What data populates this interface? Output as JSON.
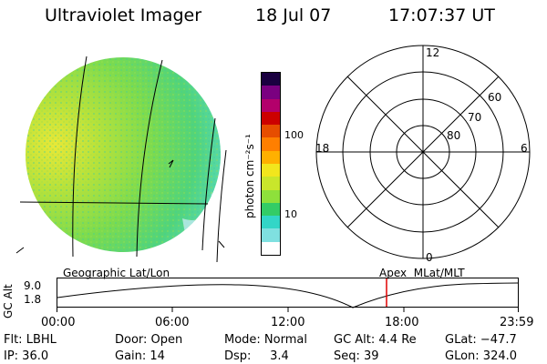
{
  "header": {
    "title": "Ultraviolet Imager",
    "date": "18 Jul 07",
    "time": "17:07:37 UT"
  },
  "colorbar": {
    "unit_label": "photon cm⁻²s⁻¹",
    "ticks": [
      "100",
      "10"
    ],
    "colors": [
      "#ffffff",
      "#7fe0e0",
      "#32d6c7",
      "#33cc66",
      "#8ee03b",
      "#c9e62b",
      "#f2e61d",
      "#ffb000",
      "#ff7f00",
      "#e64d00",
      "#cc0000",
      "#b3006b",
      "#7a0080",
      "#1a0040"
    ]
  },
  "polar_plot": {
    "mlt_labels": {
      "top": "12",
      "left": "18",
      "right": "6",
      "bottom": "0"
    },
    "lat_labels": [
      "60",
      "70",
      "80"
    ]
  },
  "timeline": {
    "left_label": "Geographic Lat/Lon",
    "right_label": "Apex  MLat/MLT",
    "axis_label": "GC Alt",
    "y_ticks": [
      "9.0",
      "1.8"
    ],
    "time_ticks": [
      "00:00",
      "06:00",
      "12:00",
      "18:00",
      "23:59"
    ],
    "marker_color": "#e00000"
  },
  "footer": {
    "filter": "Flt: LBHL",
    "ip": "IP: 36.0",
    "door": "Door: Open",
    "gain": "Gain: 14",
    "mode": "Mode: Normal",
    "dsp": "Dsp:     3.4",
    "gc_alt": "GC Alt: 4.4 Re",
    "seq": "Seq: 39",
    "glat": "GLat: −47.7",
    "glon": "GLon: 324.0"
  }
}
